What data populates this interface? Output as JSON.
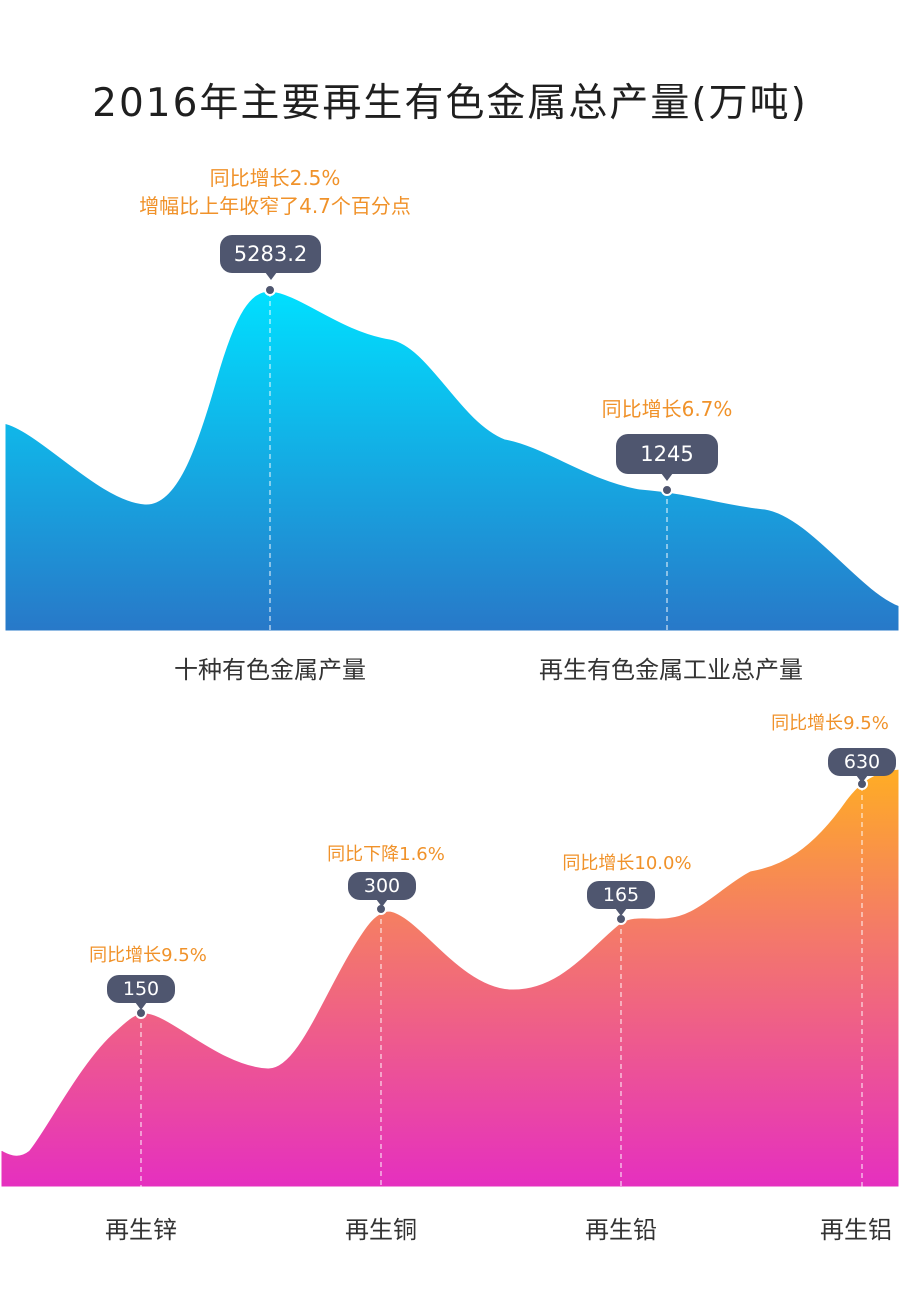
{
  "title": "2016年主要再生有色金属总产量(万吨)",
  "colors": {
    "top_gradient_top": "#00e0ff",
    "top_gradient_bottom": "#2878c8",
    "bottom_gradient_top": "#ffb020",
    "bottom_gradient_bottom": "#e52fc0",
    "annotation": "#f0922a",
    "bubble": "#4f566f"
  },
  "top_chart": {
    "points": [
      {
        "label": "十种有色金属产量",
        "value": "5283.2",
        "note_line1": "同比增长2.5%",
        "note_line2": "增幅比上年收窄了4.7个百分点"
      },
      {
        "label": "再生有色金属工业总产量",
        "value": "1245",
        "note_line1": "同比增长6.7%"
      }
    ]
  },
  "bottom_chart": {
    "points": [
      {
        "label": "再生锌",
        "value": "150",
        "note": "同比增长9.5%"
      },
      {
        "label": "再生铜",
        "value": "300",
        "note": "同比下降1.6%"
      },
      {
        "label": "再生铅",
        "value": "165",
        "note": "同比增长10.0%"
      },
      {
        "label": "再生铝",
        "value": "630",
        "note": "同比增长9.5%"
      }
    ]
  },
  "chart_data": [
    {
      "type": "area",
      "title": "2016年主要再生有色金属总产量(万吨)",
      "categories": [
        "十种有色金属产量",
        "再生有色金属工业总产量"
      ],
      "values": [
        5283.2,
        1245
      ],
      "annotations": [
        "同比增长2.5%，增幅比上年收窄了4.7个百分点",
        "同比增长6.7%"
      ],
      "xlabel": "",
      "ylabel": "万吨",
      "grid": false
    },
    {
      "type": "area",
      "title": "2016年主要再生有色金属总产量(万吨)",
      "categories": [
        "再生锌",
        "再生铜",
        "再生铅",
        "再生铝"
      ],
      "values": [
        150,
        300,
        165,
        630
      ],
      "annotations": [
        "同比增长9.5%",
        "同比下降1.6%",
        "同比增长10.0%",
        "同比增长9.5%"
      ],
      "xlabel": "",
      "ylabel": "万吨",
      "grid": false
    }
  ]
}
